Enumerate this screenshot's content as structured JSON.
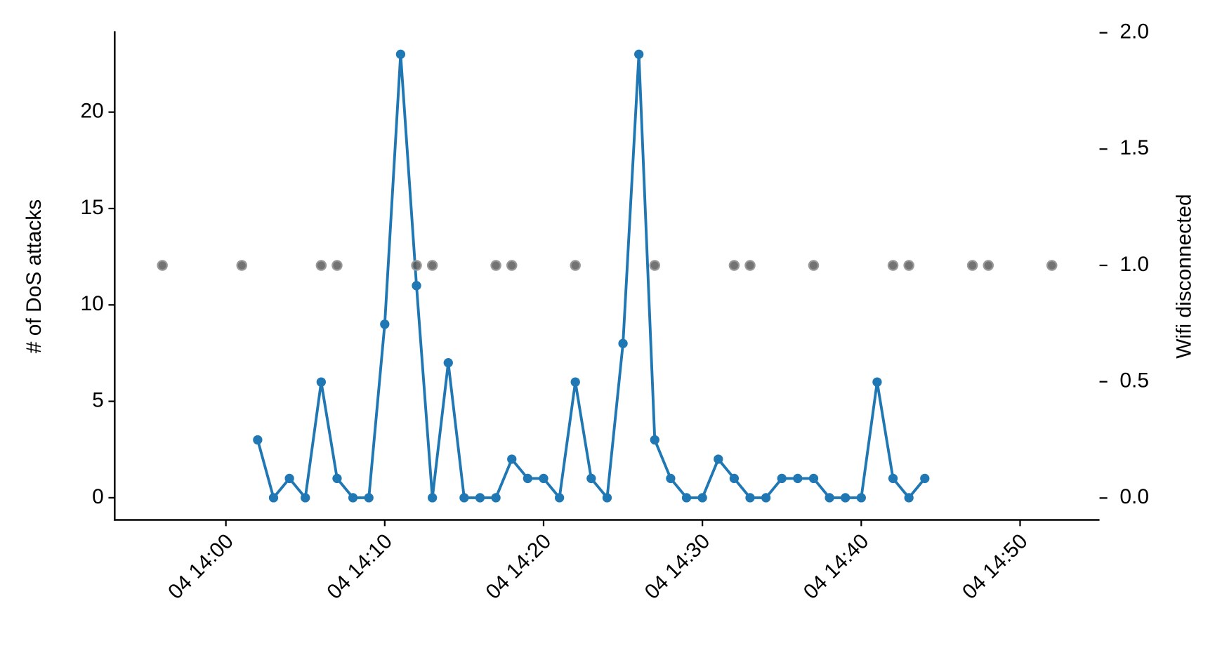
{
  "chart_data": {
    "type": "line",
    "ylabel": "# of DoS attacks",
    "y2label": "Wifi disconnected",
    "xlim": [
      "04 13:53",
      "04 14:55"
    ],
    "xticks": [
      "04 14:00",
      "04 14:10",
      "04 14:20",
      "04 14:30",
      "04 14:40",
      "04 14:50"
    ],
    "ylim": [
      -1.15,
      24.2
    ],
    "yticks": [
      0,
      5,
      10,
      15,
      20
    ],
    "y2lim": [
      -0.094,
      2.007
    ],
    "y2ticks": [
      {
        "value": 0,
        "label": "0.0"
      },
      0.5,
      {
        "value": 1,
        "label": "1.0"
      },
      1.5,
      {
        "value": 2,
        "label": "2.0"
      }
    ],
    "grid": false,
    "series": [
      {
        "type": "line",
        "color": "#1f77b4",
        "x": [
          "04 14:02",
          "04 14:03",
          "04 14:04",
          "04 14:05",
          "04 14:06",
          "04 14:07",
          "04 14:08",
          "04 14:09",
          "04 14:10",
          "04 14:11",
          "04 14:12",
          "04 14:13",
          "04 14:14",
          "04 14:15",
          "04 14:16",
          "04 14:17",
          "04 14:18",
          "04 14:19",
          "04 14:20",
          "04 14:21",
          "04 14:22",
          "04 14:23",
          "04 14:24",
          "04 14:25",
          "04 14:26",
          "04 14:27",
          "04 14:28",
          "04 14:29",
          "04 14:30",
          "04 14:31",
          "04 14:32",
          "04 14:33",
          "04 14:34",
          "04 14:35",
          "04 14:36",
          "04 14:37",
          "04 14:38",
          "04 14:39",
          "04 14:40",
          "04 14:41",
          "04 14:42",
          "04 14:43",
          "04 14:44"
        ],
        "values": [
          3,
          0,
          1,
          0,
          6,
          1,
          0,
          0,
          9,
          23,
          11,
          0,
          7,
          0,
          0,
          0,
          2,
          1,
          1,
          0,
          6,
          1,
          0,
          8,
          23,
          3,
          1,
          0,
          0,
          2,
          1,
          0,
          0,
          1,
          1,
          1,
          0,
          0,
          0,
          6,
          1,
          0,
          1
        ]
      },
      {
        "type": "scatter",
        "axis": "y2",
        "color": "#5a5a5a",
        "x": [
          "04 13:56",
          "04 14:01",
          "04 14:06",
          "04 14:07",
          "04 14:12",
          "04 14:13",
          "04 14:17",
          "04 14:18",
          "04 14:22",
          "04 14:27",
          "04 14:32",
          "04 14:33",
          "04 14:37",
          "04 14:42",
          "04 14:43",
          "04 14:47",
          "04 14:48",
          "04 14:52"
        ],
        "values": [
          1,
          1,
          1,
          1,
          1,
          1,
          1,
          1,
          1,
          1,
          1,
          1,
          1,
          1,
          1,
          1,
          1,
          1
        ]
      }
    ]
  }
}
